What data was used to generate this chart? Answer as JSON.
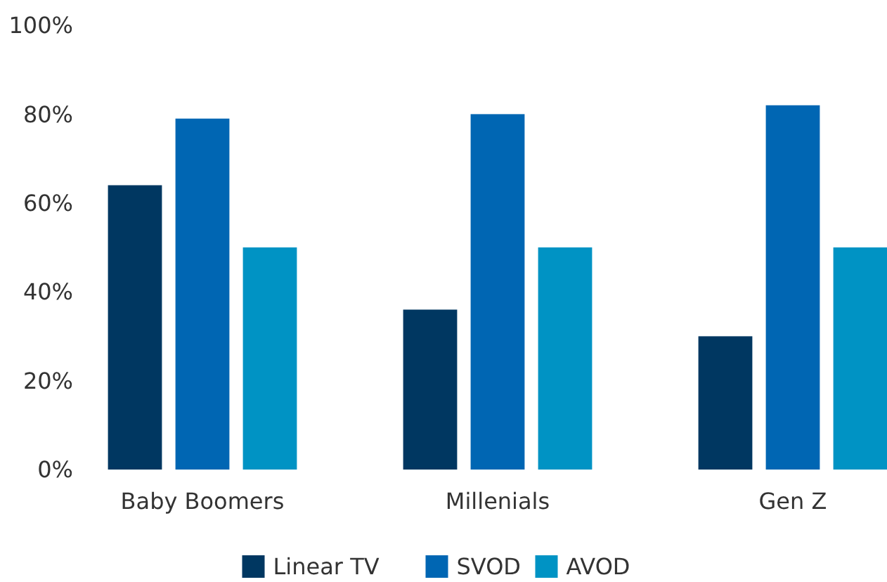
{
  "chart_data": {
    "type": "bar",
    "categories": [
      "Baby Boomers",
      "Millenials",
      "Gen Z"
    ],
    "series": [
      {
        "name": "Linear TV",
        "color": "#003761",
        "values": [
          64,
          36,
          30
        ]
      },
      {
        "name": "SVOD",
        "color": "#0066b3",
        "values": [
          79,
          80,
          82
        ]
      },
      {
        "name": "AVOD",
        "color": "#0093c4",
        "values": [
          50,
          50,
          50
        ]
      }
    ],
    "ylim": [
      0,
      100
    ],
    "yticks": [
      {
        "value": 0,
        "label": "0%"
      },
      {
        "value": 20,
        "label": "20%"
      },
      {
        "value": 40,
        "label": "40%"
      },
      {
        "value": 60,
        "label": "60%"
      },
      {
        "value": 80,
        "label": "80%"
      },
      {
        "value": 100,
        "label": "100%"
      }
    ],
    "grid": false,
    "legend": "bottom"
  }
}
